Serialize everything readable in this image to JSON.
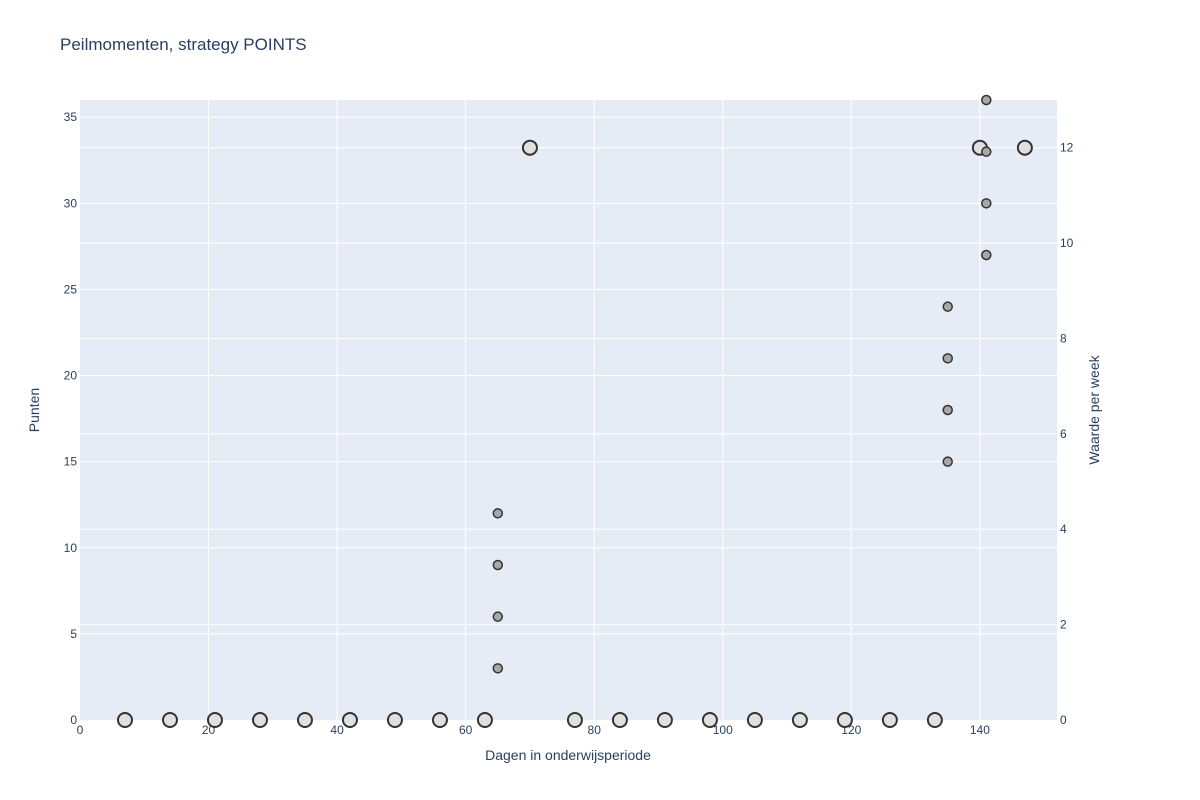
{
  "chart_data": {
    "type": "scatter",
    "title": "Peilmomenten, strategy POINTS",
    "xlabel": "Dagen in onderwijsperiode",
    "ylabel": "Punten",
    "y2label": "Waarde per week",
    "xlim": [
      0,
      152
    ],
    "ylim": [
      0,
      36
    ],
    "y2lim": [
      0,
      13
    ],
    "xticks": [
      0,
      20,
      40,
      60,
      80,
      100,
      120,
      140
    ],
    "yticks": [
      0,
      5,
      10,
      15,
      20,
      25,
      30,
      35
    ],
    "y2ticks": [
      0,
      2,
      4,
      6,
      8,
      10,
      12
    ],
    "grid": true,
    "colors": {
      "plot_bg": "#e5ecf6",
      "grid": "#ffffff",
      "weekly_fill": "#e0e0e0",
      "points_fill": "#a8a8a8",
      "marker_line": "#333333"
    },
    "series": [
      {
        "axis": "y2",
        "marker": "large-open",
        "x": [
          7,
          14,
          21,
          28,
          35,
          42,
          49,
          56,
          63,
          70,
          77,
          84,
          91,
          98,
          105,
          112,
          119,
          126,
          133,
          140,
          147
        ],
        "y": [
          0,
          0,
          0,
          0,
          0,
          0,
          0,
          0,
          0,
          12,
          0,
          0,
          0,
          0,
          0,
          0,
          0,
          0,
          0,
          12,
          12
        ]
      },
      {
        "axis": "y",
        "marker": "small-filled",
        "x": [
          65,
          65,
          65,
          65,
          135,
          135,
          135,
          135,
          141,
          141,
          141,
          141
        ],
        "y": [
          3,
          6,
          9,
          12,
          15,
          18,
          21,
          24,
          27,
          30,
          33,
          36
        ]
      }
    ]
  }
}
